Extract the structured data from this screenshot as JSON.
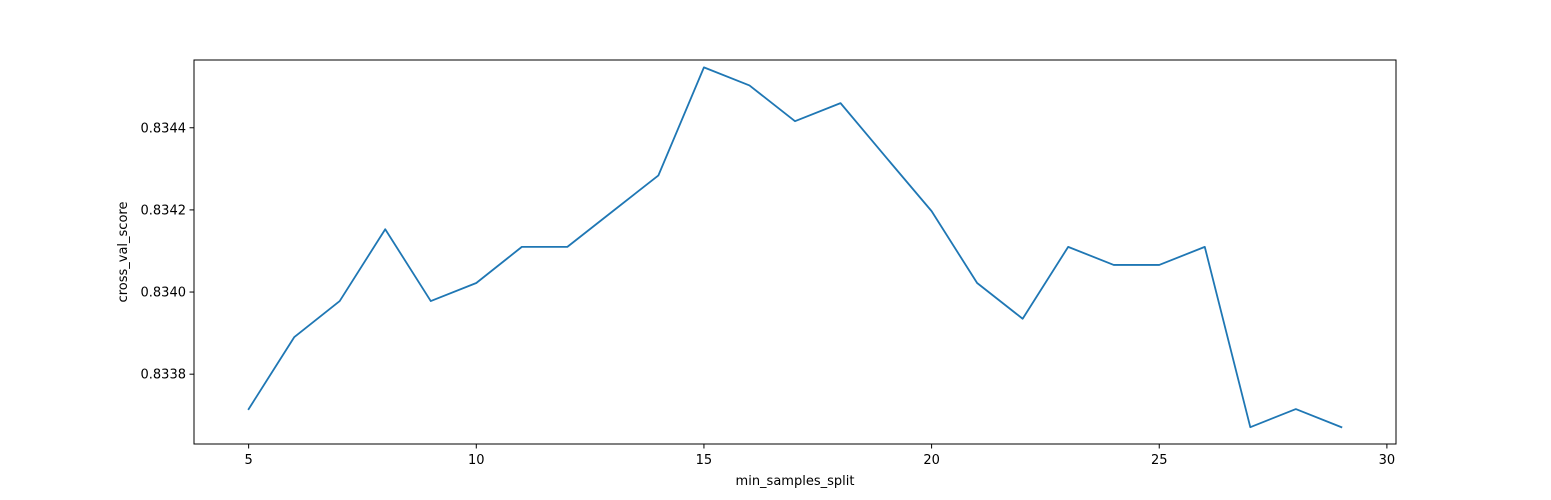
{
  "chart_data": {
    "type": "line",
    "title": "",
    "xlabel": "min_samples_split",
    "ylabel": "cross_val_score",
    "xlim": [
      3.8,
      30.2
    ],
    "ylim": [
      0.83363,
      0.834565
    ],
    "xticks": [
      5,
      10,
      15,
      20,
      25,
      30
    ],
    "xtick_labels": [
      "5",
      "10",
      "15",
      "20",
      "25",
      "30"
    ],
    "yticks": [
      0.8338,
      0.834,
      0.8342,
      0.8344
    ],
    "ytick_labels": [
      "0.8338",
      "0.8340",
      "0.8342",
      "0.8344"
    ],
    "grid": false,
    "legend": false,
    "series": [
      {
        "color": "#1f77b4",
        "x": [
          5,
          6,
          7,
          8,
          9,
          10,
          11,
          12,
          13,
          14,
          15,
          16,
          17,
          18,
          19,
          20,
          21,
          22,
          23,
          24,
          25,
          26,
          27,
          28,
          29
        ],
        "y": [
          0.833715,
          0.83389,
          0.833978,
          0.834153,
          0.833978,
          0.834022,
          0.83411,
          0.83411,
          0.834197,
          0.834284,
          0.834547,
          0.834503,
          0.834416,
          0.83446,
          0.834328,
          0.834197,
          0.834022,
          0.833935,
          0.83411,
          0.834066,
          0.834066,
          0.83411,
          0.833671,
          0.833715,
          0.833671
        ]
      }
    ]
  }
}
